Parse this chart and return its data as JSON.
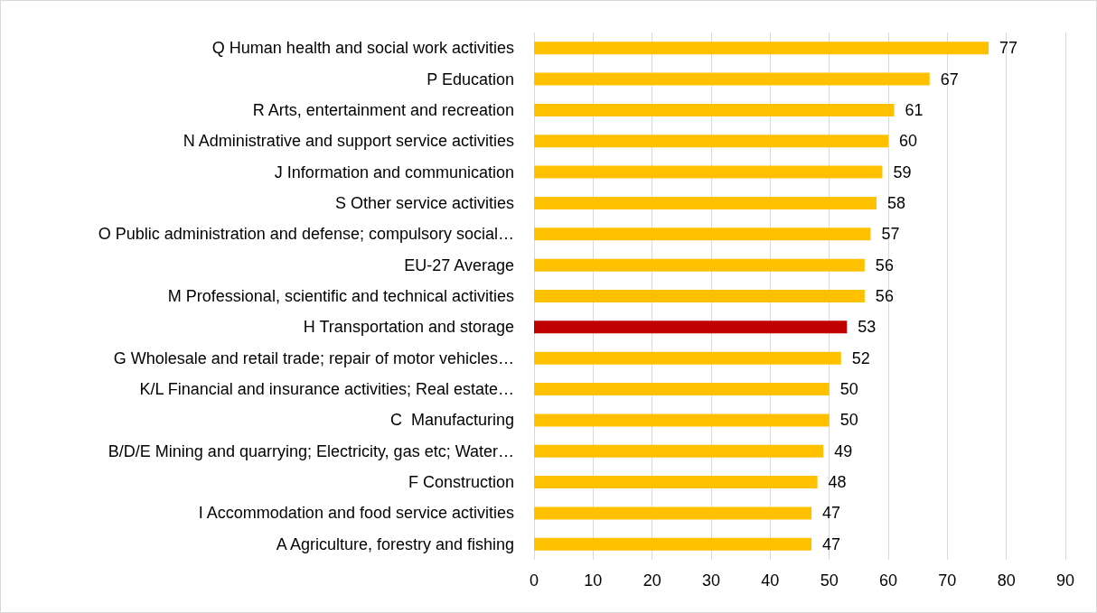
{
  "chart_data": {
    "type": "bar",
    "orientation": "horizontal",
    "categories": [
      "Q Human health and social work activities",
      "P Education",
      "R Arts, entertainment and recreation",
      "N Administrative and support service activities",
      "J Information and communication",
      "S Other service activities",
      "O Public administration and defense; compulsory social…",
      "EU-27 Average",
      "M Professional, scientific and technical activities",
      "H Transportation and storage",
      "G Wholesale and retail trade; repair of motor vehicles…",
      "K/L Financial and insurance activities; Real estate…",
      "C  Manufacturing",
      "B/D/E Mining and quarrying; Electricity, gas etc; Water…",
      "F Construction",
      "I Accommodation and food service activities",
      "A Agriculture, forestry and fishing"
    ],
    "values": [
      77,
      67,
      61,
      60,
      59,
      58,
      57,
      56,
      56,
      53,
      52,
      50,
      50,
      49,
      48,
      47,
      47
    ],
    "colors": [
      "#ffc000",
      "#ffc000",
      "#ffc000",
      "#ffc000",
      "#ffc000",
      "#ffc000",
      "#ffc000",
      "#ffc000",
      "#ffc000",
      "#c00000",
      "#ffc000",
      "#ffc000",
      "#ffc000",
      "#ffc000",
      "#ffc000",
      "#ffc000",
      "#ffc000"
    ],
    "xlim": [
      0,
      90
    ],
    "xticks": [
      0,
      10,
      20,
      30,
      40,
      50,
      60,
      70,
      80,
      90
    ],
    "grid": "x",
    "data_labels": true
  }
}
